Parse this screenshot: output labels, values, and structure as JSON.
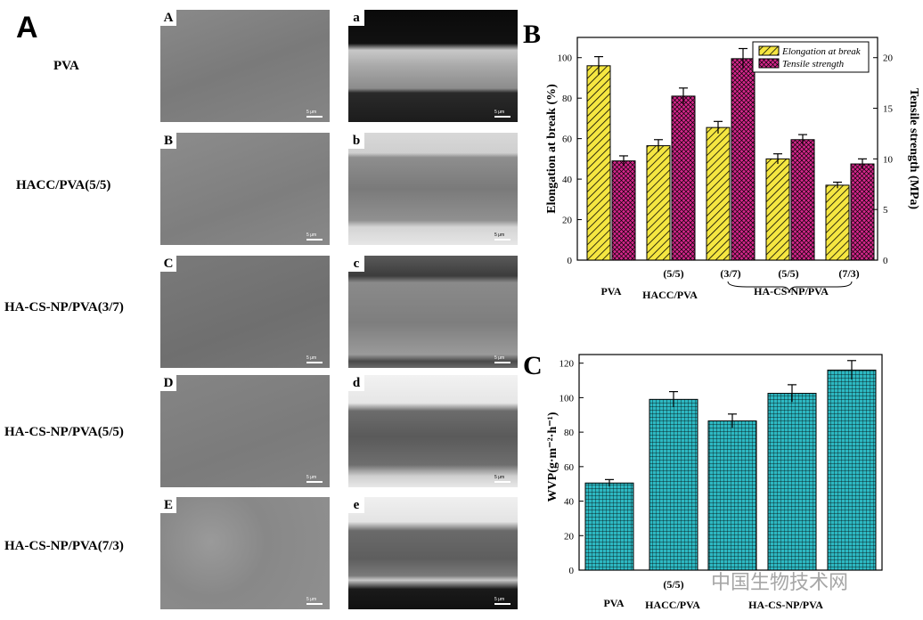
{
  "panel_a": {
    "letter": "A",
    "rows": [
      {
        "name": "PVA",
        "surface_label": "A",
        "cross_label": "a"
      },
      {
        "name": "HACC/PVA(5/5)",
        "surface_label": "B",
        "cross_label": "b"
      },
      {
        "name": "HA-CS-NP/PVA(3/7)",
        "surface_label": "C",
        "cross_label": "c"
      },
      {
        "name": "HA-CS-NP/PVA(5/5)",
        "surface_label": "D",
        "cross_label": "d"
      },
      {
        "name": "HA-CS-NP/PVA(7/3)",
        "surface_label": "E",
        "cross_label": "e"
      }
    ],
    "scale_bar": "5 μm"
  },
  "chart_data": [
    {
      "panel": "B",
      "type": "bar",
      "categories": [
        "PVA",
        "HACC/PVA (5/5)",
        "HA-CS-NP/PVA (3/7)",
        "HA-CS-NP/PVA (5/5)",
        "HA-CS-NP/PVA (7/3)"
      ],
      "group_labels": [
        "PVA",
        "HACC/PVA",
        "HA-CS-NP/PVA"
      ],
      "ratio_labels": [
        "",
        "(5/5)",
        "(3/7)",
        "(5/5)",
        "(7/3)"
      ],
      "series": [
        {
          "name": "Elongation at break",
          "axis": "left",
          "color": "#f5e641",
          "pattern": "diagonal-hatch",
          "values": [
            96,
            56.5,
            65.5,
            50,
            37
          ],
          "errors": [
            4.5,
            3,
            3,
            2.5,
            1.5
          ]
        },
        {
          "name": "Tensile strength",
          "axis": "right",
          "color": "#d6268c",
          "pattern": "crosshatch",
          "values": [
            9.8,
            16.2,
            19.9,
            11.9,
            9.5
          ],
          "errors": [
            0.5,
            0.8,
            1.0,
            0.5,
            0.5
          ]
        }
      ],
      "ylabel": "Elongation at break (%)",
      "ylabel_right": "Tensile strength (MPa)",
      "ylim": [
        0,
        110
      ],
      "yticks": [
        0,
        20,
        40,
        60,
        80,
        100
      ],
      "ylim_right": [
        0,
        22
      ],
      "yticks_right": [
        0,
        5,
        10,
        15,
        20
      ],
      "legend": "top-right"
    },
    {
      "panel": "C",
      "type": "bar",
      "categories": [
        "PVA",
        "HACC/PVA (5/5)",
        "HA-CS-NP/PVA (3/7)",
        "HA-CS-NP/PVA (5/5)",
        "HA-CS-NP/PVA (7/3)"
      ],
      "group_labels": [
        "PVA",
        "HACC/PVA",
        "HA-CS-NP/PVA"
      ],
      "ratio_labels": [
        "",
        "(5/5)",
        "",
        "",
        ""
      ],
      "series": [
        {
          "name": "WVP",
          "color": "#2db8c2",
          "pattern": "grid",
          "values": [
            50.5,
            99,
            86.5,
            102.5,
            116
          ],
          "errors": [
            2,
            4.5,
            4,
            5,
            5.5
          ]
        }
      ],
      "ylabel": "WVP(g·m⁻²·h⁻¹)",
      "ylim": [
        0,
        125
      ],
      "yticks": [
        0,
        20,
        40,
        60,
        80,
        100,
        120
      ]
    }
  ],
  "watermark": "中国生物技术网"
}
